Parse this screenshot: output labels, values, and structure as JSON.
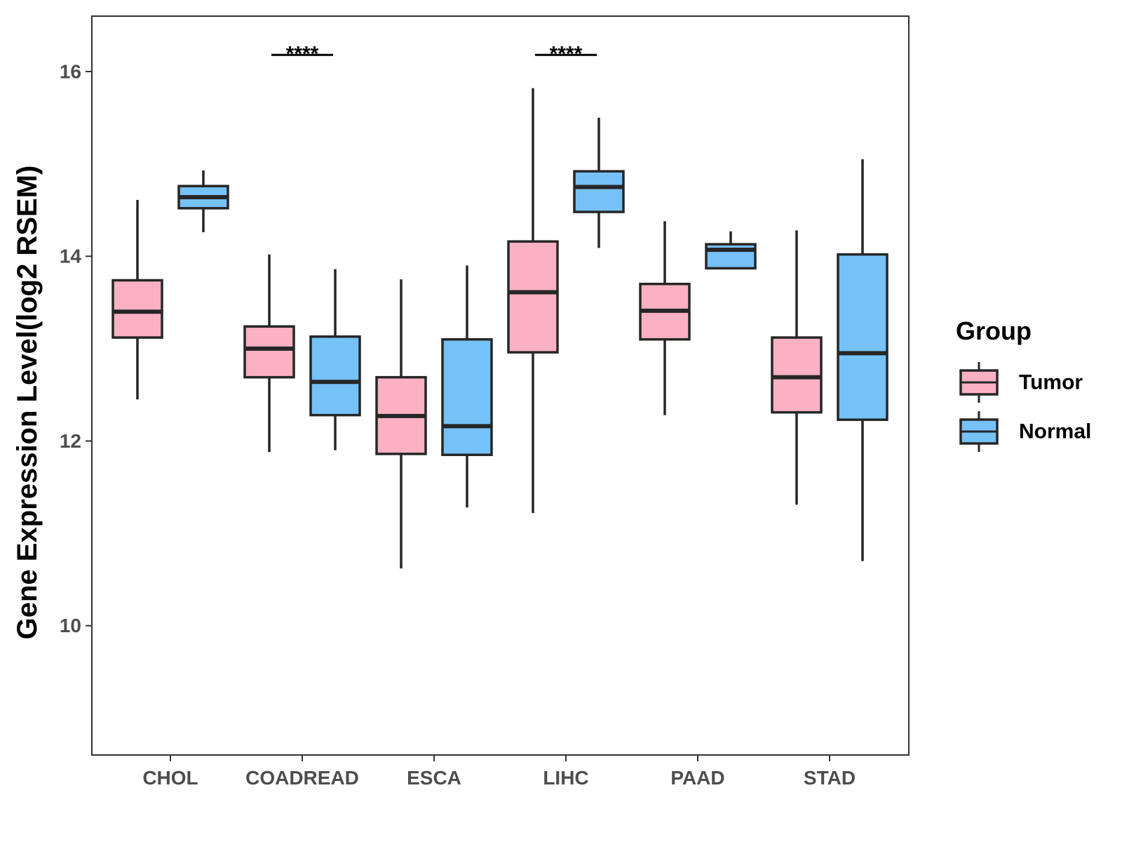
{
  "chart_data": {
    "type": "boxplot",
    "title": "",
    "xlabel": "",
    "ylabel": "Gene Expression Level(log2 RSEM)",
    "ylim": [
      8.6,
      16.6
    ],
    "yticks": [
      10,
      12,
      14,
      16
    ],
    "categories": [
      "CHOL",
      "COADREAD",
      "ESCA",
      "LIHC",
      "PAAD",
      "STAD"
    ],
    "legend": {
      "title": "Group",
      "position": "right"
    },
    "series": [
      {
        "name": "Tumor",
        "color": "#fbb1c3",
        "boxes": [
          {
            "category": "CHOL",
            "min": 12.45,
            "q1": 13.12,
            "median": 13.4,
            "q3": 13.74,
            "max": 14.61
          },
          {
            "category": "COADREAD",
            "min": 11.88,
            "q1": 12.69,
            "median": 13.0,
            "q3": 13.24,
            "max": 14.02
          },
          {
            "category": "ESCA",
            "min": 10.62,
            "q1": 11.86,
            "median": 12.27,
            "q3": 12.69,
            "max": 13.75
          },
          {
            "category": "LIHC",
            "min": 11.22,
            "q1": 12.96,
            "median": 13.61,
            "q3": 14.16,
            "max": 15.82
          },
          {
            "category": "PAAD",
            "min": 12.28,
            "q1": 13.1,
            "median": 13.41,
            "q3": 13.7,
            "max": 14.38
          },
          {
            "category": "STAD",
            "min": 11.31,
            "q1": 12.31,
            "median": 12.69,
            "q3": 13.12,
            "max": 14.28
          }
        ]
      },
      {
        "name": "Normal",
        "color": "#76c1f8",
        "boxes": [
          {
            "category": "CHOL",
            "min": 14.26,
            "q1": 14.52,
            "median": 14.64,
            "q3": 14.76,
            "max": 14.93
          },
          {
            "category": "COADREAD",
            "min": 11.9,
            "q1": 12.28,
            "median": 12.64,
            "q3": 13.13,
            "max": 13.86
          },
          {
            "category": "ESCA",
            "min": 11.28,
            "q1": 11.85,
            "median": 12.16,
            "q3": 13.1,
            "max": 13.9
          },
          {
            "category": "LIHC",
            "min": 14.09,
            "q1": 14.48,
            "median": 14.75,
            "q3": 14.92,
            "max": 15.5
          },
          {
            "category": "PAAD",
            "min": 13.87,
            "q1": 13.87,
            "median": 14.07,
            "q3": 14.13,
            "max": 14.27
          },
          {
            "category": "STAD",
            "min": 10.7,
            "q1": 12.23,
            "median": 12.95,
            "q3": 14.02,
            "max": 15.05
          }
        ]
      }
    ],
    "annotations": [
      {
        "category": "COADREAD",
        "label": "****",
        "y": 16.18
      },
      {
        "category": "LIHC",
        "label": "****",
        "y": 16.18
      }
    ]
  }
}
